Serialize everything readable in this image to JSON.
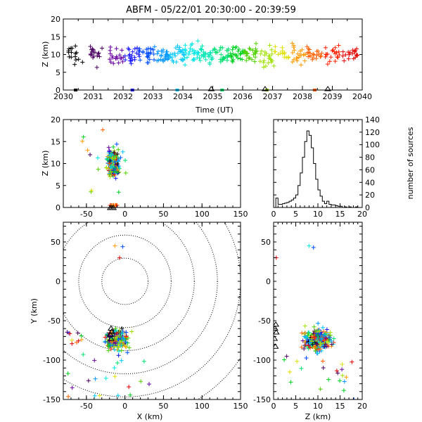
{
  "figure": {
    "title": "ABFM - 05/22/01 20:30:00 - 20:39:59"
  },
  "chart_data": [
    {
      "id": "time-height",
      "type": "scatter",
      "xlabel": "Time (UT)",
      "ylabel": "Z (km)",
      "xlim": [
        2030,
        2040
      ],
      "ylim": [
        0,
        20
      ],
      "xticks": [
        "2030",
        "2031",
        "2032",
        "2033",
        "2034",
        "2035",
        "2036",
        "2037",
        "2038",
        "2039",
        "2040"
      ],
      "yticks": [
        "0",
        "5",
        "10",
        "15",
        "20"
      ],
      "clusters": [
        {
          "x": 2030.4,
          "z": 10,
          "n": 16,
          "color": "#000000"
        },
        {
          "x": 2031.1,
          "z": 10,
          "n": 18,
          "color": "#4b0063"
        },
        {
          "x": 2031.8,
          "z": 9.5,
          "n": 20,
          "color": "#6a00a0"
        },
        {
          "x": 2032.3,
          "z": 10,
          "n": 22,
          "color": "#1a1aff"
        },
        {
          "x": 2032.8,
          "z": 10,
          "n": 24,
          "color": "#0050ff"
        },
        {
          "x": 2033.3,
          "z": 10,
          "n": 26,
          "color": "#0096ff"
        },
        {
          "x": 2033.8,
          "z": 10,
          "n": 26,
          "color": "#00c8ff"
        },
        {
          "x": 2034.3,
          "z": 10,
          "n": 26,
          "color": "#00e6e6"
        },
        {
          "x": 2034.8,
          "z": 10,
          "n": 26,
          "color": "#00e6b4"
        },
        {
          "x": 2035.3,
          "z": 10,
          "n": 26,
          "color": "#00e070"
        },
        {
          "x": 2035.8,
          "z": 10,
          "n": 26,
          "color": "#00d020"
        },
        {
          "x": 2036.3,
          "z": 10,
          "n": 24,
          "color": "#50d000"
        },
        {
          "x": 2036.8,
          "z": 9.5,
          "n": 22,
          "color": "#a0e000"
        },
        {
          "x": 2037.3,
          "z": 10,
          "n": 14,
          "color": "#e0e000"
        },
        {
          "x": 2037.9,
          "z": 10,
          "n": 22,
          "color": "#ff9a00"
        },
        {
          "x": 2038.4,
          "z": 10,
          "n": 22,
          "color": "#ff6000"
        },
        {
          "x": 2039.0,
          "z": 10,
          "n": 20,
          "color": "#ff2000"
        },
        {
          "x": 2039.6,
          "z": 10,
          "n": 20,
          "color": "#e00000"
        }
      ],
      "stations": [
        {
          "x": 2036.75,
          "z": 0
        },
        {
          "x": 2038.85,
          "z": 0
        },
        {
          "x": 2034.95,
          "z": 0
        }
      ]
    },
    {
      "id": "x-z",
      "type": "scatter",
      "xlabel": "",
      "ylabel": "Z (km)",
      "xlim": [
        -80,
        150
      ],
      "ylim": [
        0,
        20
      ],
      "xticks": [
        "-50",
        "0",
        "50",
        "100",
        "150"
      ],
      "yticks": [
        "0",
        "5",
        "10",
        "15",
        "20"
      ],
      "center": {
        "x": -15,
        "z": 10
      },
      "stations_x": [
        -19,
        -17,
        -15
      ]
    },
    {
      "id": "histogram",
      "type": "bar",
      "xlabel": "",
      "ylabel": "number of sources",
      "xlim": [
        0,
        20
      ],
      "ylim": [
        0,
        140
      ],
      "xticks": [
        "0",
        "5",
        "10",
        "15",
        "20"
      ],
      "yticks": [
        "0",
        "20",
        "40",
        "60",
        "80",
        "100",
        "120",
        "140"
      ],
      "bin_width": 0.5,
      "counts": [
        0,
        15,
        5,
        5,
        6,
        7,
        8,
        10,
        12,
        15,
        20,
        35,
        55,
        80,
        105,
        122,
        115,
        95,
        70,
        45,
        28,
        18,
        10,
        6,
        10,
        5,
        4,
        4,
        3,
        2,
        2,
        0,
        1,
        0,
        1,
        0,
        0,
        1,
        0,
        0
      ]
    },
    {
      "id": "x-y",
      "type": "scatter",
      "xlabel": "X (km)",
      "ylabel": "Y (km)",
      "xlim": [
        -80,
        150
      ],
      "ylim": [
        -150,
        75
      ],
      "xticks": [
        "-50",
        "0",
        "50",
        "100",
        "150"
      ],
      "yticks": [
        "-150",
        "-100",
        "-50",
        "0",
        "50"
      ],
      "range_rings_km": [
        30,
        60,
        90,
        120,
        150,
        180
      ],
      "center": {
        "x": -15,
        "y": -75
      },
      "stations": [
        {
          "x": -18,
          "y": -62
        },
        {
          "x": -17,
          "y": -66
        },
        {
          "x": -19,
          "y": -70
        },
        {
          "x": -18,
          "y": -75
        }
      ],
      "outliers": [
        {
          "x": -13,
          "y": 45,
          "color": "#ff9a00"
        },
        {
          "x": -3,
          "y": 44,
          "color": "#0050ff"
        },
        {
          "x": -7,
          "y": 30,
          "color": "#e00000"
        }
      ]
    },
    {
      "id": "z-y",
      "type": "scatter",
      "xlabel": "Z (km)",
      "ylabel": "",
      "xlim": [
        0,
        20
      ],
      "ylim": [
        -150,
        75
      ],
      "xticks": [
        "0",
        "5",
        "10",
        "15",
        "20"
      ],
      "yticks": [
        "-150",
        "-100",
        "-50",
        "0",
        "50"
      ],
      "center": {
        "z": 10,
        "y": -75
      },
      "stations": [
        {
          "z": 0.5,
          "y": -57
        },
        {
          "z": 0.3,
          "y": -62
        },
        {
          "z": 0.6,
          "y": -67
        },
        {
          "z": 0.2,
          "y": -75
        },
        {
          "z": 0.4,
          "y": -85
        }
      ],
      "outliers": [
        {
          "z": 0.6,
          "y": 30,
          "color": "#e00000"
        },
        {
          "z": 8,
          "y": 45,
          "color": "#00e6e6"
        },
        {
          "z": 9,
          "y": 43,
          "color": "#0050ff"
        }
      ]
    }
  ],
  "palette": [
    "#000000",
    "#4b0063",
    "#6a00a0",
    "#1a1aff",
    "#0050ff",
    "#0096ff",
    "#00c8ff",
    "#00e6e6",
    "#00e070",
    "#00d020",
    "#50d000",
    "#a0e000",
    "#e0e000",
    "#ff9a00",
    "#ff6000",
    "#ff2000",
    "#e00000"
  ]
}
